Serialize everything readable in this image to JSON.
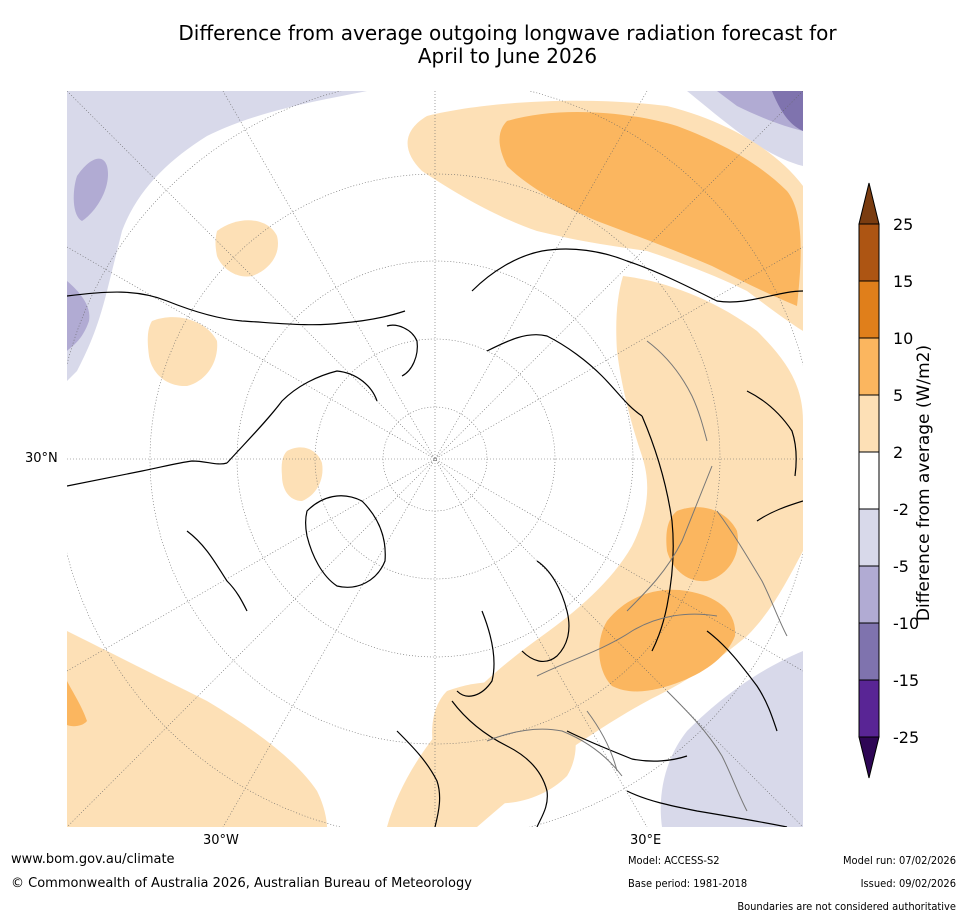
{
  "title": {
    "line1": "Difference from average outgoing longwave radiation forecast for",
    "line2": "April to June 2026"
  },
  "map": {
    "axis_labels": {
      "lat_30n": "30°N",
      "lon_30w": "30°W",
      "lon_30e": "30°E"
    }
  },
  "colorbar": {
    "title": "Difference from average (W/m2)",
    "ticks": [
      "25",
      "15",
      "10",
      "5",
      "2",
      "-2",
      "-5",
      "-10",
      "-15",
      "-25"
    ],
    "colors": {
      "gt25": "#7a3c10",
      "c15_25": "#ad5513",
      "c10_15": "#e07f1b",
      "c5_10": "#fbb65f",
      "c2_5": "#fde0b6",
      "neutral": "#ffffff",
      "m2_5": "#d8d9ea",
      "m5_10": "#b1abd3",
      "m10_15": "#7f73ae",
      "m15_25": "#592595",
      "lt25": "#2e0655"
    }
  },
  "footer": {
    "website": "www.bom.gov.au/climate",
    "copyright": "© Commonwealth of Australia 2026, Australian Bureau of Meteorology",
    "model": "Model: ACCESS-S2",
    "base_period": "Base period: 1981-2018",
    "model_run": "Model run: 07/02/2026",
    "issued": "Issued: 09/02/2026",
    "disclaimer": "Boundaries are not considered authoritative"
  }
}
